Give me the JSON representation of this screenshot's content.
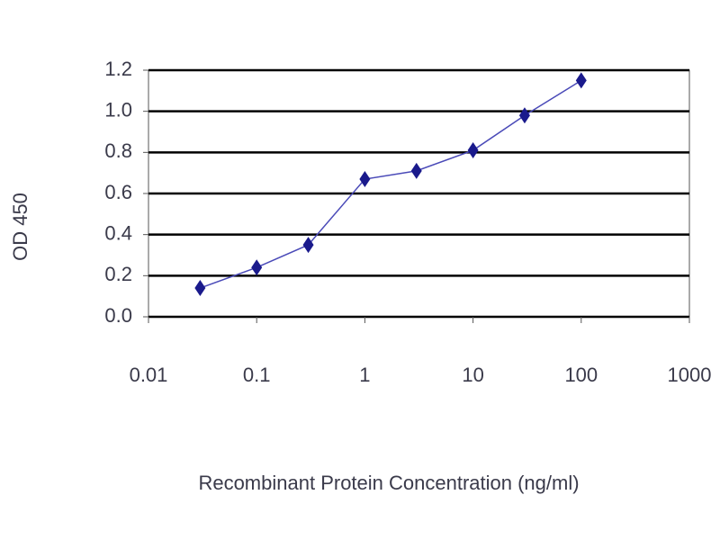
{
  "chart_data": {
    "type": "line",
    "y_label": "OD 450",
    "x_label": "Recombinant Protein Concentration (ng/ml)",
    "x": [
      0.03,
      0.1,
      0.3,
      1,
      3,
      10,
      30,
      100
    ],
    "values": [
      0.14,
      0.24,
      0.35,
      0.67,
      0.71,
      0.81,
      0.98,
      1.15
    ],
    "color": "#1a1a8c",
    "x_log": true,
    "xlim": [
      0.01,
      1000
    ],
    "xticks": [
      0.01,
      0.1,
      1,
      10,
      100,
      1000
    ],
    "ylim": [
      0,
      1.2
    ],
    "yticks": [
      {
        "value": 0,
        "label": "0.0"
      },
      0.2,
      0.4,
      0.6,
      0.8,
      {
        "value": 1,
        "label": "1.0"
      },
      1.2
    ],
    "grid": true
  }
}
